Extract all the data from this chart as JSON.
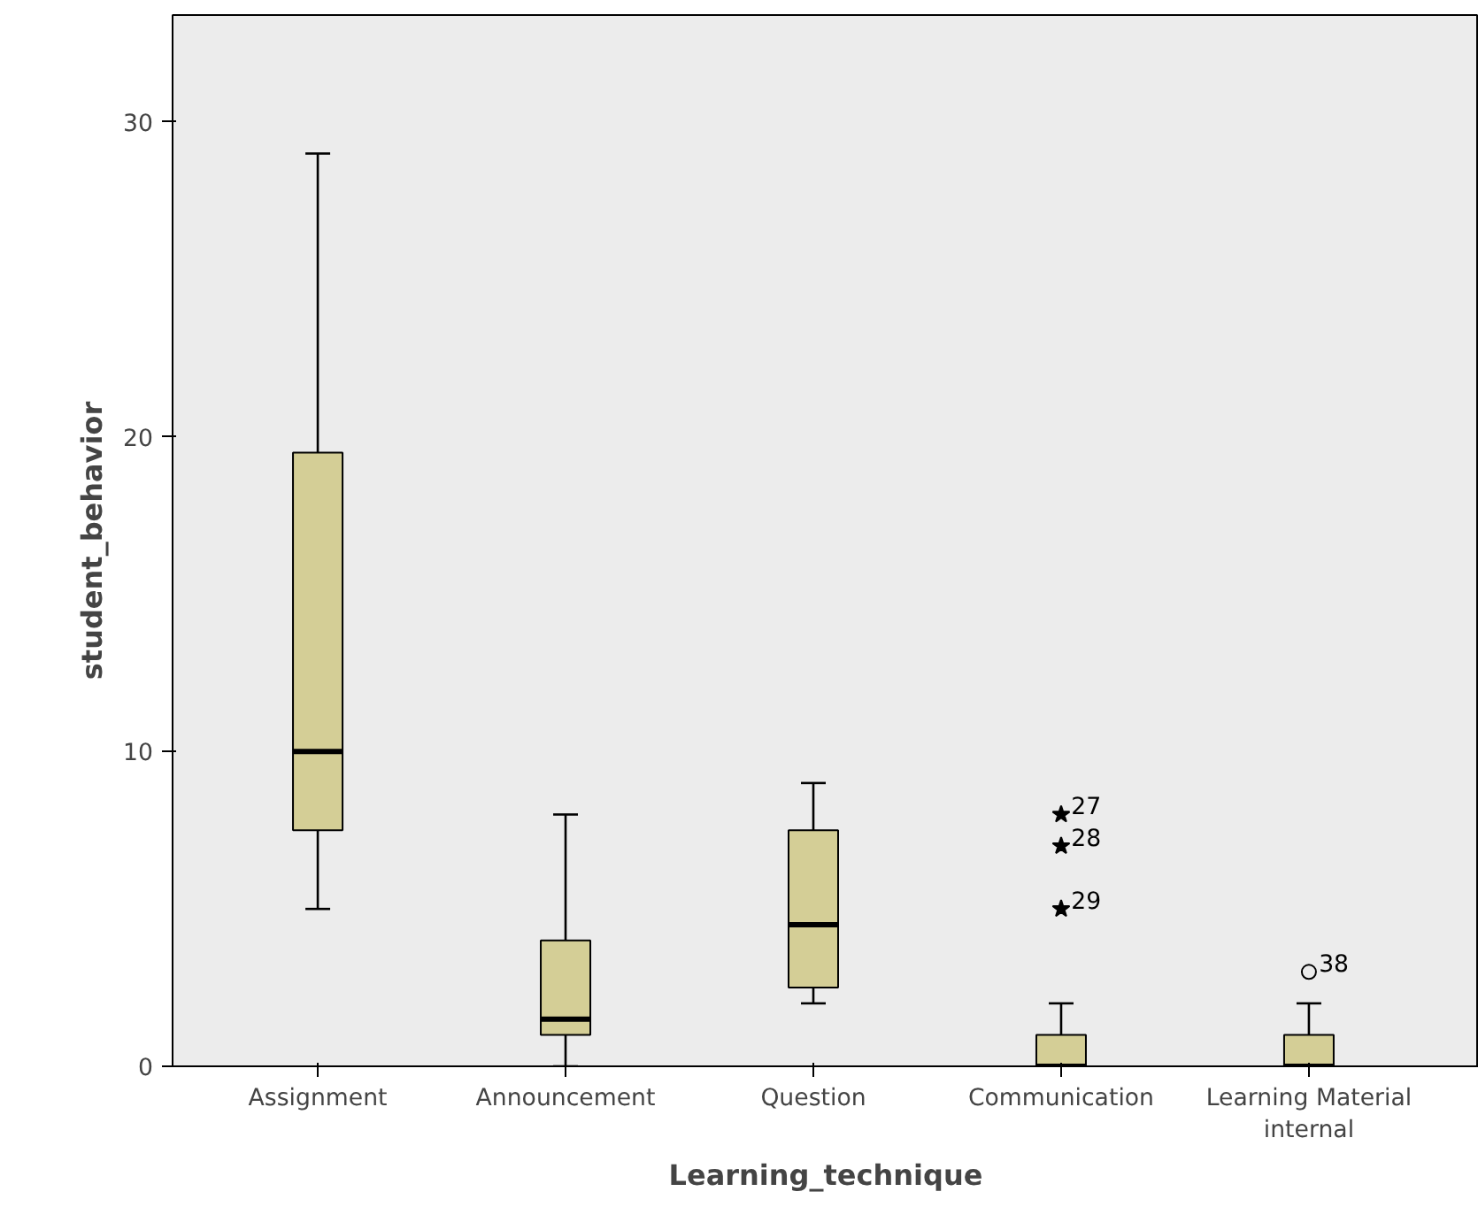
{
  "chart_data": {
    "type": "box",
    "xlabel": "Learning_technique",
    "ylabel": "student_behavior",
    "categories": [
      "Assignment",
      "Announcement",
      "Question",
      "Communication",
      "Learning Material\ninternal"
    ],
    "series": [
      {
        "color": "#d4ce96",
        "boxes": [
          {
            "low": 5,
            "q1": 7.5,
            "median": 10,
            "q3": 19.5,
            "high": 29
          },
          {
            "low": 0,
            "q1": 1,
            "median": 1.5,
            "q3": 4,
            "high": 8
          },
          {
            "low": 2,
            "q1": 2.5,
            "median": 4.5,
            "q3": 7.5,
            "high": 9
          },
          {
            "low": 0,
            "q1": 0,
            "median": 0,
            "q3": 1,
            "high": 2,
            "outliers": [
              8,
              7,
              5
            ]
          },
          {
            "low": 0,
            "q1": 0,
            "median": 0,
            "q3": 1,
            "high": 2,
            "outliers": [
              3
            ]
          }
        ]
      }
    ],
    "ylim": [
      0,
      33.4
    ],
    "yticks": [
      0,
      10,
      20,
      30
    ],
    "grid": false,
    "annotations": [
      "27",
      "28",
      "29",
      "38"
    ]
  }
}
